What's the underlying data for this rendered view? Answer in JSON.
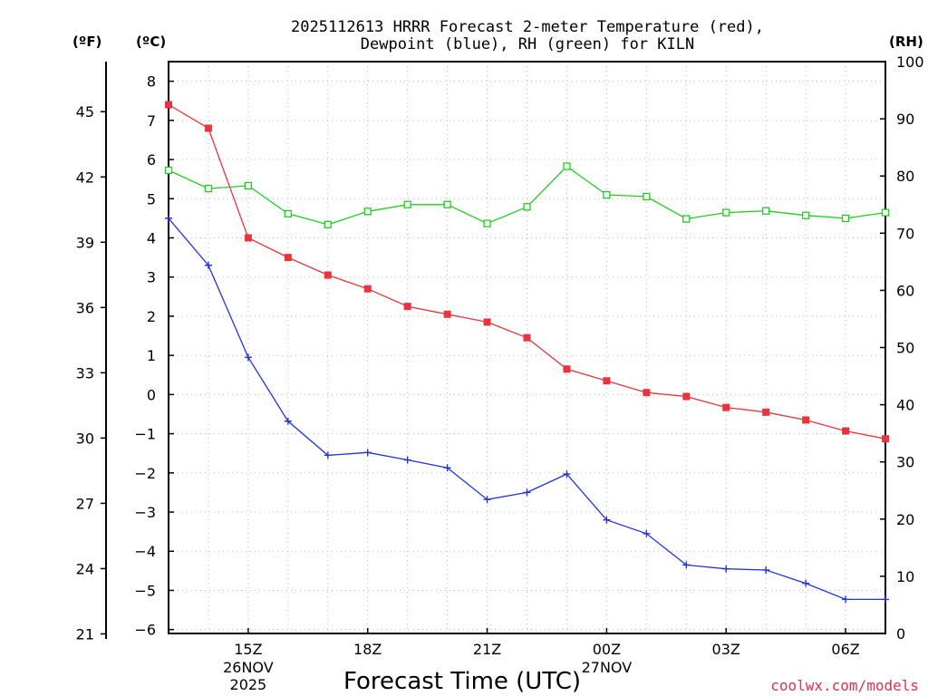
{
  "title_line1": "2025112613 HRRR Forecast 2-meter Temperature (red),",
  "title_line2": "Dewpoint (blue), RH (green) for KILN",
  "units": {
    "f": "(ºF)",
    "c": "(ºC)",
    "rh": "(RH)"
  },
  "credit": "coolwx.com/models",
  "colors": {
    "temperature": "#e8343c",
    "dewpoint": "#2233e0",
    "rh": "#22cc22"
  },
  "chart_data": {
    "type": "line",
    "title": "2025112613 HRRR Forecast 2-meter Temperature (red), Dewpoint (blue), RH (green) for KILN",
    "xlabel": "Forecast Time (UTC)",
    "x_hours": [
      13,
      14,
      15,
      16,
      17,
      18,
      19,
      20,
      21,
      22,
      23,
      24,
      25,
      26,
      27,
      28,
      29,
      30,
      31
    ],
    "xlim": [
      13,
      31
    ],
    "x_ticks": [
      {
        "hour": 15,
        "label": "15Z",
        "sub": [
          "26NOV",
          "2025"
        ]
      },
      {
        "hour": 18,
        "label": "18Z",
        "sub": []
      },
      {
        "hour": 21,
        "label": "21Z",
        "sub": []
      },
      {
        "hour": 24,
        "label": "00Z",
        "sub": [
          "27NOV"
        ]
      },
      {
        "hour": 27,
        "label": "03Z",
        "sub": []
      },
      {
        "hour": 30,
        "label": "06Z",
        "sub": []
      }
    ],
    "left_axis_c": {
      "label": "(ºC)",
      "ylim": [
        -6.1,
        8.5
      ],
      "ticks": [
        8,
        7,
        6,
        5,
        4,
        3,
        2,
        1,
        0,
        -1,
        -2,
        -3,
        -4,
        -5,
        -6
      ]
    },
    "left_axis_f": {
      "label": "(ºF)",
      "ticks": [
        45,
        42,
        39,
        36,
        33,
        30,
        27,
        24,
        21
      ]
    },
    "right_axis_rh": {
      "label": "(RH)",
      "ylim": [
        0,
        100
      ],
      "ticks": [
        100,
        90,
        80,
        70,
        60,
        50,
        40,
        30,
        20,
        10,
        0
      ]
    },
    "series": [
      {
        "name": "Temperature",
        "color": "red",
        "marker": "filled-square",
        "axis": "c",
        "values": [
          7.4,
          6.8,
          4.0,
          3.5,
          3.05,
          2.7,
          2.25,
          2.05,
          1.85,
          1.45,
          0.65,
          0.35,
          0.05,
          -0.05,
          -0.33,
          -0.45,
          -0.65,
          -0.93,
          -1.13
        ]
      },
      {
        "name": "Dewpoint",
        "color": "blue",
        "marker": "plus",
        "axis": "c",
        "values": [
          4.5,
          3.3,
          0.95,
          -0.68,
          -1.55,
          -1.48,
          -1.67,
          -1.87,
          -2.68,
          -2.5,
          -2.03,
          -3.2,
          -3.55,
          -4.35,
          -4.45,
          -4.48,
          -4.82,
          -5.23,
          -5.23
        ]
      },
      {
        "name": "RH",
        "color": "green",
        "marker": "open-square",
        "axis": "rh",
        "values": [
          81,
          77.8,
          78.3,
          73.4,
          71.5,
          73.8,
          75,
          75,
          71.7,
          74.6,
          81.7,
          76.7,
          76.4,
          72.5,
          73.6,
          73.9,
          73.1,
          72.6,
          73.6
        ]
      }
    ]
  }
}
